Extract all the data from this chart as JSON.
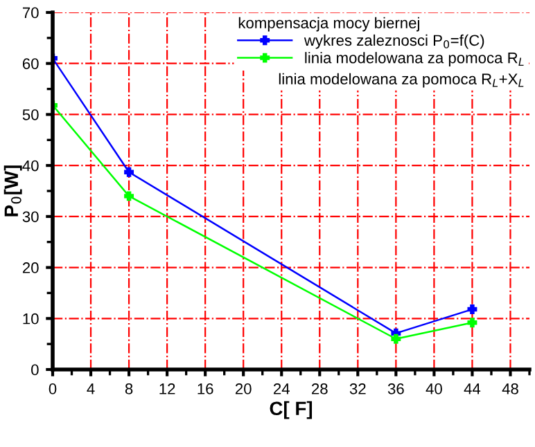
{
  "chart_data": {
    "type": "line",
    "xlabel": "C[ F]",
    "ylabel": "P$_{0}$[W]",
    "legend_title": "kompensacja mocy biernej",
    "x": [
      0,
      8,
      36,
      44
    ],
    "series": [
      {
        "name": "wykres zaleznosci P$_{0}$=f(C)",
        "color": "#0000ff",
        "values": [
          61,
          38.7,
          7.1,
          11.8
        ]
      },
      {
        "name": "linia modelowana za pomoca R$_{L}$",
        "color": "#00ff00",
        "values": [
          51.8,
          34,
          6,
          9.2
        ]
      }
    ],
    "annotations": [
      "linia modelowana za pomoca R$_{L}$+X$_{L}$"
    ],
    "xlim": [
      0,
      50
    ],
    "ylim": [
      0,
      70
    ],
    "xticks": [
      0,
      4,
      8,
      12,
      16,
      20,
      24,
      28,
      32,
      36,
      40,
      44,
      48
    ],
    "yticks": [
      0,
      10,
      20,
      30,
      40,
      50,
      60,
      70
    ],
    "grid": true,
    "legend": "top right",
    "marker": "cross",
    "line_style": "solid"
  }
}
